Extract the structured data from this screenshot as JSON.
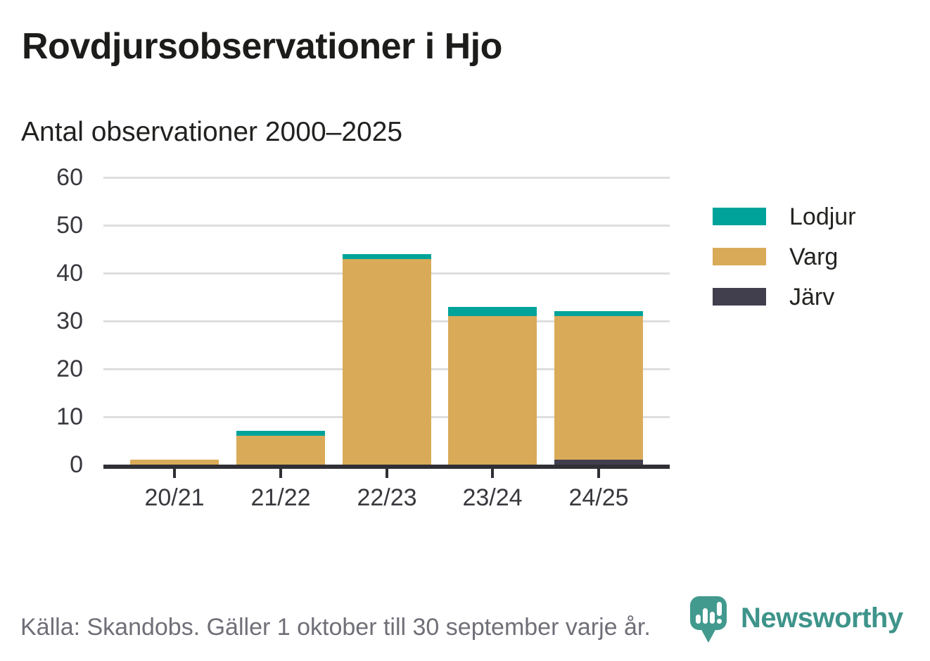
{
  "header": {
    "title": "Rovdjursobservationer i Hjo",
    "subtitle": "Antal observationer 2000–2025"
  },
  "chart_data": {
    "type": "bar",
    "stacked": true,
    "title": "Rovdjursobservationer i Hjo",
    "subtitle": "Antal observationer 2000–2025",
    "xlabel": "",
    "ylabel": "",
    "categories": [
      "20/21",
      "21/22",
      "22/23",
      "23/24",
      "24/25"
    ],
    "series": [
      {
        "name": "Lodjur",
        "color": "#00a39a",
        "values": [
          0,
          1,
          1,
          2,
          1
        ]
      },
      {
        "name": "Varg",
        "color": "#d9ab58",
        "values": [
          1,
          6,
          43,
          31,
          30
        ]
      },
      {
        "name": "Järv",
        "color": "#413f4e",
        "values": [
          0,
          0,
          0,
          0,
          1
        ]
      }
    ],
    "stack_order_bottom_to_top": [
      "Järv",
      "Varg",
      "Lodjur"
    ],
    "totals": [
      1,
      7,
      44,
      33,
      32
    ],
    "ylim": [
      0,
      60
    ],
    "yticks": [
      0,
      10,
      20,
      30,
      40,
      50,
      60
    ],
    "grid": "horizontal",
    "legend_position": "right"
  },
  "legend": {
    "items": [
      {
        "label": "Lodjur",
        "color": "#00a39a"
      },
      {
        "label": "Varg",
        "color": "#d9ab58"
      },
      {
        "label": "Järv",
        "color": "#413f4e"
      }
    ]
  },
  "footer": {
    "source": "Källa: Skandobs. Gäller 1 oktober till 30 september varje år."
  },
  "branding": {
    "name": "Newsworthy",
    "color": "#3e948a",
    "logo_icon": "bar-chart-speech-bubble"
  }
}
